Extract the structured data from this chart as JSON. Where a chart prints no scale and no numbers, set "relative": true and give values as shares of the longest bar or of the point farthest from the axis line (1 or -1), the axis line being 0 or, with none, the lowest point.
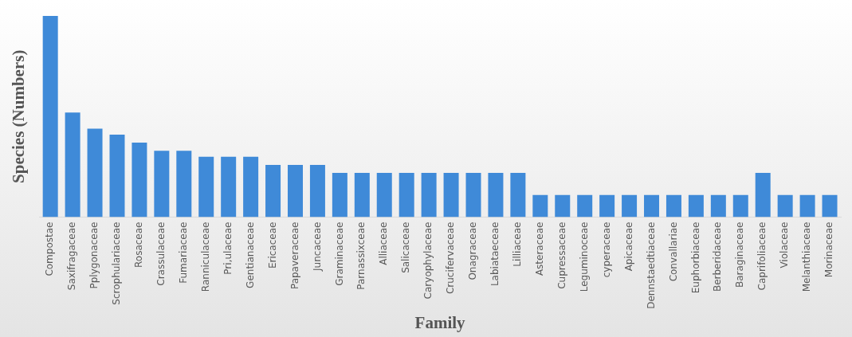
{
  "chart_data": {
    "type": "bar",
    "relative": true,
    "xlabel": "Family",
    "ylabel": "Species (Numbers)",
    "color": "#3f8ad8",
    "grid": false,
    "legend": false,
    "categories": [
      "Compostae",
      "Saxifragaceae",
      "Pplygonaceae",
      "Scrophulariaceae",
      "Rosaceae",
      "Crassulaceae",
      "Fumariaceae",
      "Ranniculaceae",
      "Pri,ulaceae",
      "Gentianaceae",
      "Ericaceae",
      "Papaveraceae",
      "Juncaceae",
      "Graminaceae",
      "Parnassixceae",
      "Alliaceae",
      "Salicaceae",
      "Caryophylaceae",
      "Crucifervaceae",
      "Onagraceae",
      "Labiataeceae",
      "Lilliaceae",
      "Asteraceae",
      "Cupressaceae",
      "Leguminoceae",
      "cyperaceae",
      "Apicaceae",
      "Dennstaedtiaceae",
      "Convallariae",
      "Euphorbiaceae",
      "Berberidaceae",
      "Baraginaceae",
      "Caprifoliaceae",
      "Violaceae",
      "Melanthiaceae",
      "Morinaceae"
    ],
    "values": [
      1,
      0.52,
      0.44,
      0.41,
      0.37,
      0.33,
      0.33,
      0.3,
      0.3,
      0.3,
      0.26,
      0.26,
      0.26,
      0.22,
      0.22,
      0.22,
      0.22,
      0.22,
      0.22,
      0.22,
      0.22,
      0.22,
      0.11,
      0.11,
      0.11,
      0.11,
      0.11,
      0.11,
      0.11,
      0.11,
      0.11,
      0.11,
      0.22,
      0.11,
      0.11,
      0.11
    ]
  }
}
